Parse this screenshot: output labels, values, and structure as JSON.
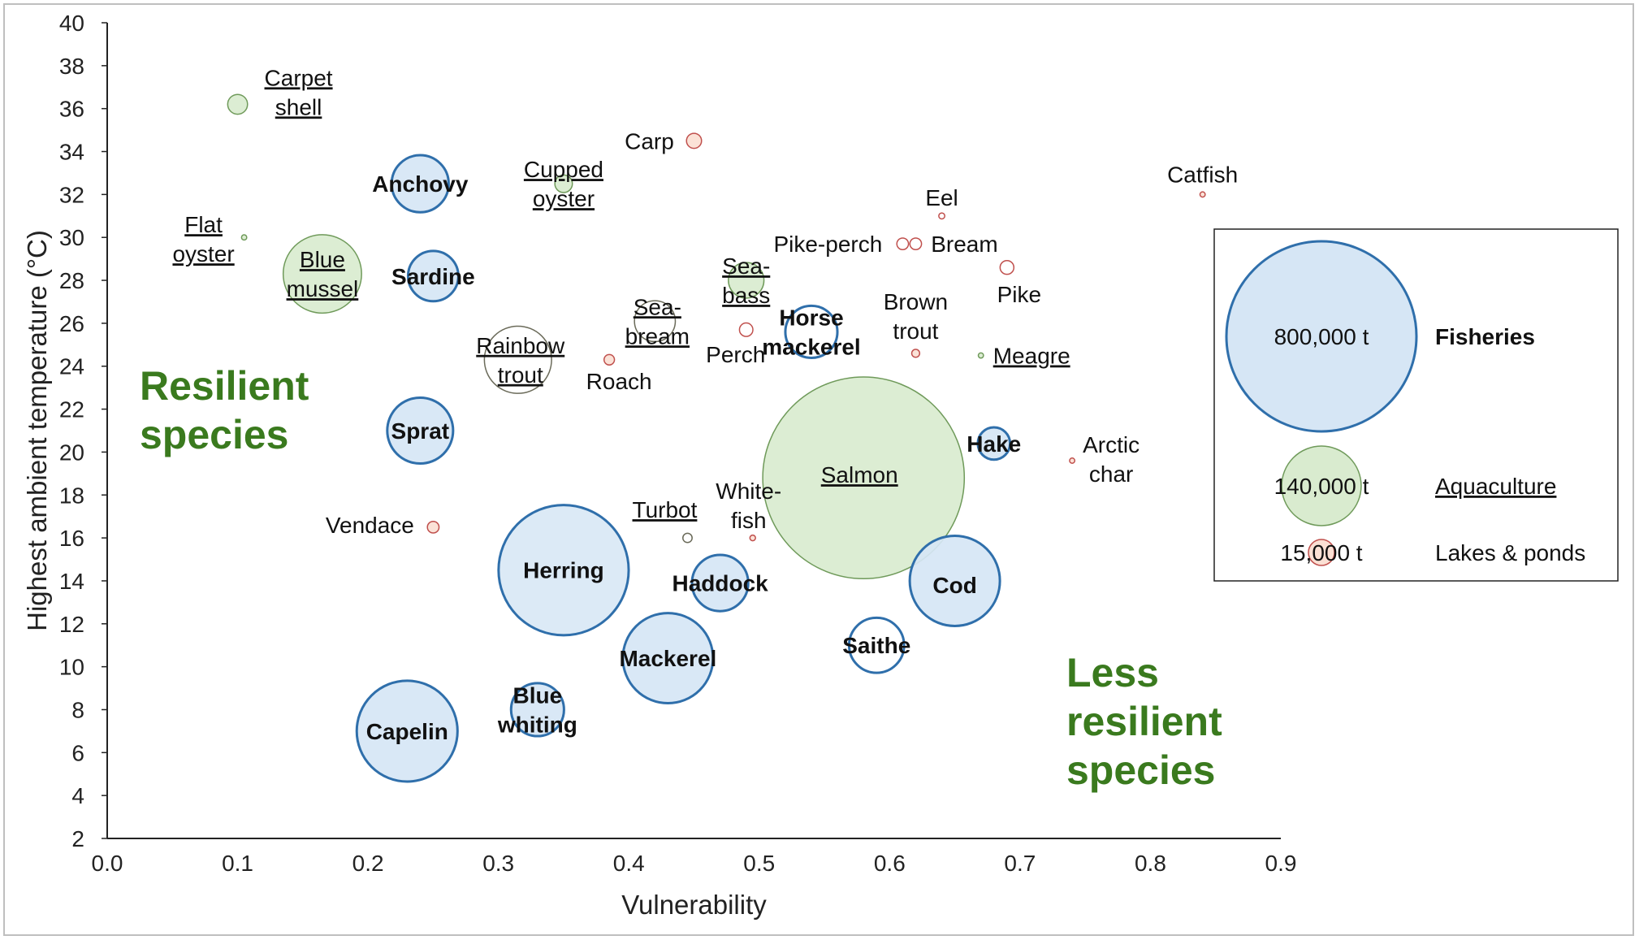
{
  "colors": {
    "fisheries_fill": "#d6e6f5",
    "fisheries_stroke": "#2f6fab",
    "aquaculture_fill": "#d9ebcf",
    "aquaculture_stroke": "#6f9a5a",
    "lakes_fill": "#fbe0d4",
    "lakes_stroke": "#c0504d",
    "open_stroke_dark": "#6b6b5a",
    "annotation": "#3a7a1e"
  },
  "chart_data": {
    "type": "bubble",
    "xlabel": "Vulnerability",
    "ylabel": "Highest ambient temperature (°C)",
    "xlim": [
      0.0,
      0.9
    ],
    "ylim": [
      2,
      40
    ],
    "x_ticks": [
      "0.0",
      "0.1",
      "0.2",
      "0.3",
      "0.4",
      "0.5",
      "0.6",
      "0.7",
      "0.8",
      "0.9"
    ],
    "y_ticks": [
      "2",
      "4",
      "6",
      "8",
      "10",
      "12",
      "14",
      "16",
      "18",
      "20",
      "22",
      "24",
      "26",
      "28",
      "30",
      "32",
      "34",
      "36",
      "38",
      "40"
    ],
    "grid": false,
    "legend": {
      "position": "right",
      "entries": [
        {
          "size_label": "800,000 t",
          "name": "Fisheries",
          "group": "fisheries",
          "tonnes": 800000
        },
        {
          "size_label": "140,000 t",
          "name": "Aquaculture",
          "group": "aquaculture",
          "tonnes": 140000
        },
        {
          "size_label": "15,000 t",
          "name": "Lakes & ponds",
          "group": "lakes",
          "tonnes": 15000
        }
      ]
    },
    "annotations": [
      {
        "text_lines": [
          "Resilient",
          "species"
        ]
      },
      {
        "text_lines": [
          "Less",
          "resilient",
          "species"
        ]
      }
    ],
    "points": [
      {
        "name": "Carpet shell",
        "group": "aquaculture",
        "x": 0.1,
        "y": 36.2,
        "tonnes": 8700
      },
      {
        "name": "Flat oyster",
        "group": "aquaculture",
        "x": 0.105,
        "y": 30.0,
        "tonnes": 600
      },
      {
        "name": "Blue mussel",
        "group": "aquaculture",
        "x": 0.165,
        "y": 28.3,
        "tonnes": 136000
      },
      {
        "name": "Anchovy",
        "group": "fisheries",
        "x": 0.24,
        "y": 32.5,
        "tonnes": 72000
      },
      {
        "name": "Sardine",
        "group": "fisheries",
        "x": 0.25,
        "y": 28.2,
        "tonnes": 56000
      },
      {
        "name": "Sprat",
        "group": "fisheries",
        "x": 0.24,
        "y": 21.0,
        "tonnes": 96000
      },
      {
        "name": "Capelin",
        "group": "fisheries",
        "x": 0.23,
        "y": 7.0,
        "tonnes": 225000
      },
      {
        "name": "Herring",
        "group": "fisheries",
        "x": 0.35,
        "y": 14.5,
        "tonnes": 375000
      },
      {
        "name": "Blue whiting",
        "group": "fisheries",
        "x": 0.33,
        "y": 8.0,
        "tonnes": 62000
      },
      {
        "name": "Mackerel",
        "group": "fisheries",
        "x": 0.43,
        "y": 10.4,
        "tonnes": 180000
      },
      {
        "name": "Haddock",
        "group": "fisheries",
        "x": 0.47,
        "y": 13.9,
        "tonnes": 70000
      },
      {
        "name": "Horse mackerel",
        "group": "fisheries",
        "x": 0.54,
        "y": 25.6,
        "tonnes": 60000
      },
      {
        "name": "Hake",
        "group": "fisheries",
        "x": 0.68,
        "y": 20.4,
        "tonnes": 23000
      },
      {
        "name": "Cod",
        "group": "fisheries",
        "x": 0.65,
        "y": 14.0,
        "tonnes": 180000
      },
      {
        "name": "Saithe",
        "group": "fisheries",
        "x": 0.59,
        "y": 11.0,
        "tonnes": 67000
      },
      {
        "name": "Cupped oyster",
        "group": "aquaculture",
        "x": 0.35,
        "y": 32.5,
        "tonnes": 6800
      },
      {
        "name": "Sea-bass",
        "group": "aquaculture",
        "x": 0.49,
        "y": 28.0,
        "tonnes": 28000
      },
      {
        "name": "Salmon",
        "group": "aquaculture",
        "x": 0.58,
        "y": 18.8,
        "tonnes": 900000
      },
      {
        "name": "Meagre",
        "group": "aquaculture",
        "x": 0.67,
        "y": 24.5,
        "tonnes": 300
      },
      {
        "name": "Rainbow trout",
        "group": "aquaculture",
        "x": 0.315,
        "y": 24.3,
        "tonnes": 100000
      },
      {
        "name": "Sea-bream",
        "group": "aquaculture",
        "x": 0.42,
        "y": 26.1,
        "tonnes": 37000
      },
      {
        "name": "Turbot",
        "group": "aquaculture",
        "x": 0.445,
        "y": 16.0,
        "tonnes": 1900
      },
      {
        "name": "Carp",
        "group": "lakes",
        "x": 0.45,
        "y": 34.5,
        "tonnes": 5000
      },
      {
        "name": "Roach",
        "group": "lakes",
        "x": 0.385,
        "y": 24.3,
        "tonnes": 2400
      },
      {
        "name": "Vendace",
        "group": "lakes",
        "x": 0.25,
        "y": 16.5,
        "tonnes": 3000
      },
      {
        "name": "Perch",
        "group": "lakes",
        "x": 0.49,
        "y": 25.7,
        "tonnes": 4000
      },
      {
        "name": "Whitefish",
        "group": "lakes",
        "x": 0.495,
        "y": 16.0,
        "tonnes": 700
      },
      {
        "name": "Pike-perch",
        "group": "lakes",
        "x": 0.61,
        "y": 29.7,
        "tonnes": 3000
      },
      {
        "name": "Bream",
        "group": "lakes",
        "x": 0.62,
        "y": 29.7,
        "tonnes": 3000
      },
      {
        "name": "Eel",
        "group": "lakes",
        "x": 0.64,
        "y": 31.0,
        "tonnes": 800
      },
      {
        "name": "Brown trout",
        "group": "lakes",
        "x": 0.62,
        "y": 24.6,
        "tonnes": 1400
      },
      {
        "name": "Pike",
        "group": "lakes",
        "x": 0.69,
        "y": 28.6,
        "tonnes": 4200
      },
      {
        "name": "Catfish",
        "group": "lakes",
        "x": 0.84,
        "y": 32.0,
        "tonnes": 300
      },
      {
        "name": "Arctic char",
        "group": "lakes",
        "x": 0.74,
        "y": 19.6,
        "tonnes": 80
      }
    ]
  }
}
